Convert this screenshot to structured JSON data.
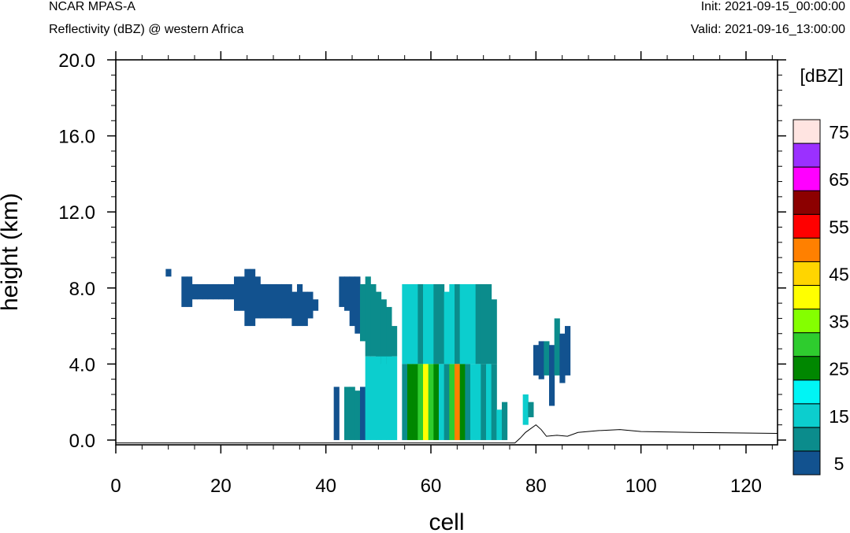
{
  "header": {
    "model": "NCAR MPAS-A",
    "subtitle": "Reflectivity (dBZ) @ western Africa",
    "init": "Init: 2021-09-15_00:00:00",
    "valid": "Valid: 2021-09-16_13:00:00"
  },
  "chart_data": {
    "type": "heatmap",
    "title": "Reflectivity (dBZ) @ western Africa",
    "xlabel": "cell",
    "ylabel": "height (km)",
    "xlim": [
      0,
      126
    ],
    "ylim": [
      -0.25,
      20
    ],
    "x_ticks": [
      0,
      20,
      40,
      60,
      80,
      100,
      120
    ],
    "x_tick_labels": [
      "0",
      "20",
      "40",
      "60",
      "80",
      "100",
      "120"
    ],
    "y_ticks": [
      0,
      4,
      8,
      12,
      16,
      20
    ],
    "y_tick_labels": [
      "0.0",
      "4.0",
      "8.0",
      "12.0",
      "16.0",
      "20.0"
    ],
    "colorbar": {
      "unit_label": "[dBZ]",
      "levels": [
        5,
        10,
        15,
        20,
        25,
        30,
        35,
        40,
        45,
        50,
        55,
        60,
        65,
        70,
        75
      ],
      "tick_labels": [
        "5",
        "15",
        "25",
        "35",
        "45",
        "55",
        "65",
        "75"
      ],
      "colors": [
        "#12528f",
        "#0b8c8c",
        "#0ccece",
        "#00f5f5",
        "#008700",
        "#2ecc2e",
        "#84ff00",
        "#ffff00",
        "#ffd500",
        "#ff8000",
        "#ff0000",
        "#8c0000",
        "#ff00ff",
        "#9b30ff",
        "#ffe4e1"
      ]
    },
    "terrain": [
      [
        0,
        -0.15
      ],
      [
        76,
        -0.15
      ],
      [
        77,
        0.1
      ],
      [
        78,
        0.4
      ],
      [
        80,
        0.8
      ],
      [
        81,
        0.55
      ],
      [
        82,
        0.2
      ],
      [
        84,
        0.25
      ],
      [
        86,
        0.2
      ],
      [
        88,
        0.4
      ],
      [
        92,
        0.5
      ],
      [
        96,
        0.55
      ],
      [
        100,
        0.45
      ],
      [
        110,
        0.4
      ],
      [
        126,
        0.35
      ]
    ],
    "echo_columns": [
      {
        "x": 10,
        "bins": [
          [
            8.6,
            9.0,
            5
          ]
        ]
      },
      {
        "x": 13,
        "bins": [
          [
            7.0,
            8.6,
            5
          ]
        ]
      },
      {
        "x": 14,
        "bins": [
          [
            7.0,
            8.6,
            5
          ]
        ]
      },
      {
        "x": 15,
        "bins": [
          [
            7.4,
            8.2,
            5
          ]
        ]
      },
      {
        "x": 16,
        "bins": [
          [
            7.4,
            8.2,
            5
          ]
        ]
      },
      {
        "x": 17,
        "bins": [
          [
            7.4,
            8.2,
            5
          ]
        ]
      },
      {
        "x": 18,
        "bins": [
          [
            7.4,
            8.2,
            5
          ]
        ]
      },
      {
        "x": 19,
        "bins": [
          [
            7.4,
            8.2,
            5
          ]
        ]
      },
      {
        "x": 20,
        "bins": [
          [
            7.4,
            8.2,
            5
          ]
        ]
      },
      {
        "x": 21,
        "bins": [
          [
            7.4,
            8.2,
            5
          ]
        ]
      },
      {
        "x": 22,
        "bins": [
          [
            7.4,
            8.2,
            5
          ]
        ]
      },
      {
        "x": 23,
        "bins": [
          [
            6.8,
            8.6,
            5
          ]
        ]
      },
      {
        "x": 24,
        "bins": [
          [
            6.8,
            8.6,
            5
          ]
        ]
      },
      {
        "x": 25,
        "bins": [
          [
            6.0,
            9.0,
            5
          ]
        ]
      },
      {
        "x": 26,
        "bins": [
          [
            6.0,
            9.0,
            5
          ]
        ]
      },
      {
        "x": 27,
        "bins": [
          [
            6.4,
            8.6,
            5
          ]
        ]
      },
      {
        "x": 28,
        "bins": [
          [
            6.4,
            8.2,
            5
          ]
        ]
      },
      {
        "x": 29,
        "bins": [
          [
            6.4,
            8.2,
            5
          ]
        ]
      },
      {
        "x": 30,
        "bins": [
          [
            6.4,
            8.2,
            5
          ]
        ]
      },
      {
        "x": 31,
        "bins": [
          [
            6.4,
            8.2,
            5
          ]
        ]
      },
      {
        "x": 32,
        "bins": [
          [
            6.4,
            8.2,
            5
          ]
        ]
      },
      {
        "x": 33,
        "bins": [
          [
            6.4,
            8.2,
            5
          ]
        ]
      },
      {
        "x": 34,
        "bins": [
          [
            6.0,
            7.8,
            5
          ]
        ]
      },
      {
        "x": 35,
        "bins": [
          [
            6.0,
            8.2,
            5
          ]
        ]
      },
      {
        "x": 36,
        "bins": [
          [
            6.0,
            7.8,
            5
          ]
        ]
      },
      {
        "x": 37,
        "bins": [
          [
            6.4,
            7.8,
            5
          ]
        ]
      },
      {
        "x": 38,
        "bins": [
          [
            6.8,
            7.4,
            5
          ]
        ]
      },
      {
        "x": 42,
        "bins": [
          [
            0.0,
            2.8,
            5
          ]
        ]
      },
      {
        "x": 43,
        "bins": [
          [
            7.0,
            8.6,
            5
          ]
        ]
      },
      {
        "x": 44,
        "bins": [
          [
            6.8,
            8.6,
            5
          ],
          [
            0.0,
            2.8,
            10
          ]
        ]
      },
      {
        "x": 45,
        "bins": [
          [
            6.0,
            8.6,
            5
          ],
          [
            0.0,
            2.8,
            10
          ]
        ]
      },
      {
        "x": 46,
        "bins": [
          [
            5.6,
            8.6,
            5
          ],
          [
            0.0,
            2.6,
            10
          ]
        ]
      },
      {
        "x": 47,
        "bins": [
          [
            5.2,
            8.2,
            10
          ],
          [
            0.0,
            2.8,
            5
          ]
        ]
      },
      {
        "x": 48,
        "bins": [
          [
            4.4,
            8.6,
            10
          ],
          [
            0.0,
            4.4,
            15
          ]
        ]
      },
      {
        "x": 49,
        "bins": [
          [
            4.4,
            8.2,
            10
          ],
          [
            0.0,
            4.4,
            15
          ]
        ]
      },
      {
        "x": 50,
        "bins": [
          [
            4.0,
            7.8,
            10
          ],
          [
            0.0,
            4.4,
            15
          ]
        ]
      },
      {
        "x": 51,
        "bins": [
          [
            4.0,
            7.4,
            10
          ],
          [
            0.0,
            4.4,
            15
          ]
        ]
      },
      {
        "x": 52,
        "bins": [
          [
            4.0,
            7.0,
            10
          ],
          [
            0.0,
            4.4,
            15
          ]
        ]
      },
      {
        "x": 53,
        "bins": [
          [
            4.4,
            6.0,
            10
          ],
          [
            0.0,
            4.4,
            15
          ]
        ]
      },
      {
        "x": 55,
        "bins": [
          [
            4.0,
            8.2,
            15
          ],
          [
            0.0,
            4.0,
            10
          ]
        ]
      },
      {
        "x": 56,
        "bins": [
          [
            4.0,
            8.2,
            15
          ],
          [
            0.0,
            4.0,
            25
          ]
        ]
      },
      {
        "x": 57,
        "bins": [
          [
            4.0,
            8.2,
            15
          ],
          [
            0.0,
            4.0,
            25
          ]
        ]
      },
      {
        "x": 58,
        "bins": [
          [
            4.0,
            8.2,
            10
          ],
          [
            0.0,
            4.0,
            30
          ]
        ]
      },
      {
        "x": 59,
        "bins": [
          [
            4.0,
            8.2,
            15
          ],
          [
            0.0,
            4.0,
            40
          ]
        ]
      },
      {
        "x": 60,
        "bins": [
          [
            4.0,
            8.2,
            15
          ],
          [
            0.0,
            4.0,
            30
          ]
        ]
      },
      {
        "x": 61,
        "bins": [
          [
            4.0,
            8.2,
            10
          ],
          [
            0.0,
            4.0,
            25
          ]
        ]
      },
      {
        "x": 62,
        "bins": [
          [
            4.0,
            8.2,
            10
          ],
          [
            0.0,
            4.0,
            15
          ]
        ]
      },
      {
        "x": 63,
        "bins": [
          [
            4.0,
            7.8,
            15
          ],
          [
            0.0,
            4.0,
            10
          ]
        ]
      },
      {
        "x": 64,
        "bins": [
          [
            4.0,
            8.2,
            15
          ],
          [
            0.0,
            4.0,
            30
          ]
        ]
      },
      {
        "x": 65,
        "bins": [
          [
            4.0,
            8.2,
            10
          ],
          [
            0.0,
            4.0,
            50
          ]
        ]
      },
      {
        "x": 66,
        "bins": [
          [
            4.0,
            8.2,
            15
          ],
          [
            0.0,
            4.0,
            25
          ]
        ]
      },
      {
        "x": 67,
        "bins": [
          [
            4.0,
            8.2,
            15
          ],
          [
            0.0,
            4.0,
            10
          ]
        ]
      },
      {
        "x": 68,
        "bins": [
          [
            4.0,
            8.2,
            15
          ],
          [
            0.0,
            4.0,
            15
          ]
        ]
      },
      {
        "x": 69,
        "bins": [
          [
            4.0,
            8.2,
            10
          ],
          [
            0.0,
            4.0,
            15
          ]
        ]
      },
      {
        "x": 70,
        "bins": [
          [
            4.0,
            8.2,
            10
          ],
          [
            0.0,
            4.0,
            10
          ]
        ]
      },
      {
        "x": 71,
        "bins": [
          [
            4.0,
            8.2,
            10
          ],
          [
            0.0,
            4.0,
            15
          ]
        ]
      },
      {
        "x": 72,
        "bins": [
          [
            4.0,
            7.4,
            10
          ],
          [
            0.0,
            4.0,
            10
          ]
        ]
      },
      {
        "x": 73,
        "bins": [
          [
            0.0,
            1.6,
            15
          ]
        ]
      },
      {
        "x": 74,
        "bins": [
          [
            0.0,
            2.0,
            10
          ]
        ]
      },
      {
        "x": 78,
        "bins": [
          [
            0.8,
            2.4,
            15
          ]
        ]
      },
      {
        "x": 79,
        "bins": [
          [
            1.2,
            2.0,
            10
          ]
        ]
      },
      {
        "x": 80,
        "bins": [
          [
            3.4,
            5.0,
            5
          ]
        ]
      },
      {
        "x": 81,
        "bins": [
          [
            3.2,
            5.2,
            5
          ]
        ]
      },
      {
        "x": 82,
        "bins": [
          [
            3.4,
            5.2,
            10
          ]
        ]
      },
      {
        "x": 83,
        "bins": [
          [
            1.8,
            5.0,
            5
          ]
        ]
      },
      {
        "x": 84,
        "bins": [
          [
            3.4,
            6.4,
            10
          ]
        ]
      },
      {
        "x": 85,
        "bins": [
          [
            3.0,
            5.6,
            5
          ]
        ]
      },
      {
        "x": 86,
        "bins": [
          [
            3.4,
            6.0,
            5
          ]
        ]
      }
    ]
  }
}
